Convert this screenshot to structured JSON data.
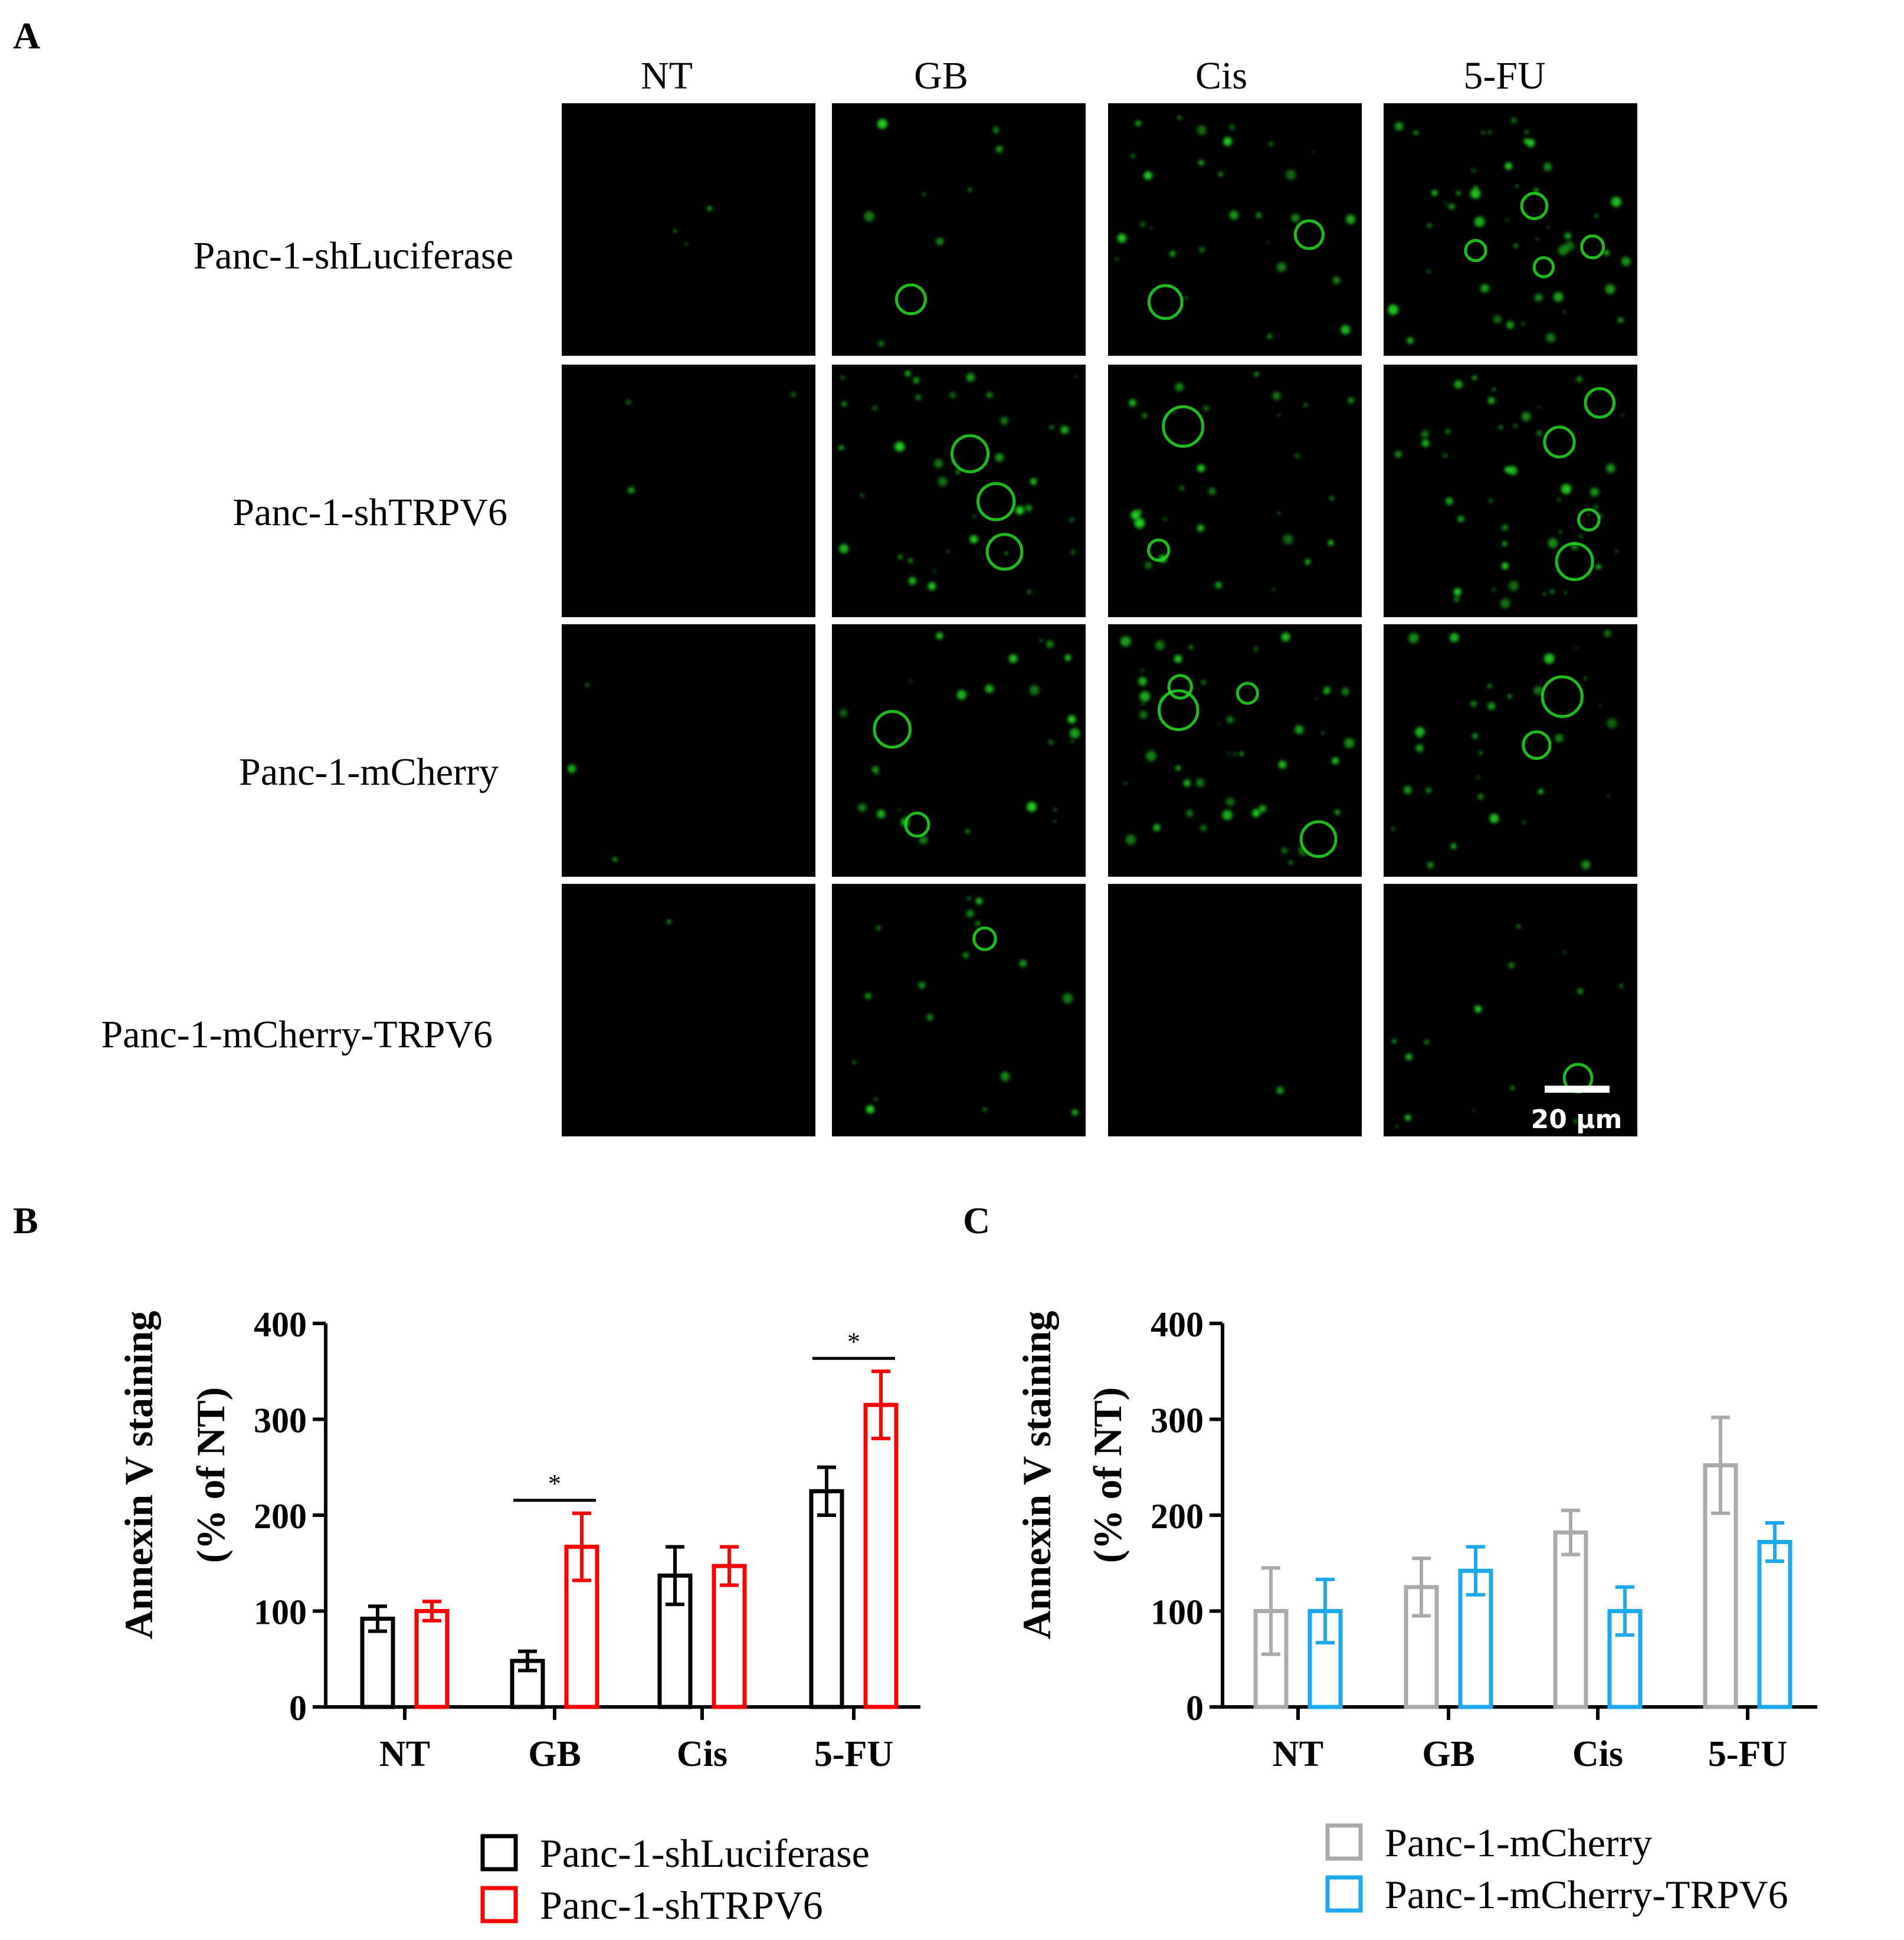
{
  "panel_labels": {
    "a": "A",
    "b": "B",
    "c": "C"
  },
  "micrograph": {
    "columns": [
      "NT",
      "GB",
      "Cis",
      "5-FU"
    ],
    "rows": [
      "Panc-1-shLuciferase",
      "Panc-1-shTRPV6",
      "Panc-1-mCherry",
      "Panc-1-mCherry-TRPV6"
    ],
    "scale_bar": "20 µm",
    "stain_color": "#22dd22"
  },
  "chart_data": [
    {
      "type": "bar",
      "panel": "B",
      "categories": [
        "NT",
        "GB",
        "Cis",
        "5-FU"
      ],
      "ylabel_line1": "Annexin V staining",
      "ylabel_line2": "(% of NT)",
      "ylim": [
        0,
        400
      ],
      "yticks": [
        0,
        100,
        200,
        300,
        400
      ],
      "series": [
        {
          "name": "Panc-1-shLuciferase",
          "color": "#000000",
          "values": [
            92,
            48,
            137,
            225
          ],
          "errors": [
            13,
            10,
            30,
            25
          ]
        },
        {
          "name": "Panc-1-shTRPV6",
          "color": "#ff0000",
          "values": [
            100,
            167,
            147,
            315
          ],
          "errors": [
            10,
            35,
            20,
            35
          ]
        }
      ],
      "significance": [
        {
          "category": "GB",
          "label": "*"
        },
        {
          "category": "5-FU",
          "label": "*"
        }
      ],
      "legend_position": "bottom"
    },
    {
      "type": "bar",
      "panel": "C",
      "categories": [
        "NT",
        "GB",
        "Cis",
        "5-FU"
      ],
      "ylabel_line1": "Annexin V staining",
      "ylabel_line2": "(% of NT)",
      "ylim": [
        0,
        400
      ],
      "yticks": [
        0,
        100,
        200,
        300,
        400
      ],
      "series": [
        {
          "name": "Panc-1-mCherry",
          "color": "#aaaaaa",
          "values": [
            100,
            125,
            182,
            252
          ],
          "errors": [
            45,
            30,
            23,
            50
          ]
        },
        {
          "name": "Panc-1-mCherry-TRPV6",
          "color": "#1ea8f0",
          "values": [
            100,
            142,
            100,
            172
          ],
          "errors": [
            33,
            25,
            25,
            20
          ]
        }
      ],
      "significance": [],
      "legend_position": "bottom"
    }
  ]
}
